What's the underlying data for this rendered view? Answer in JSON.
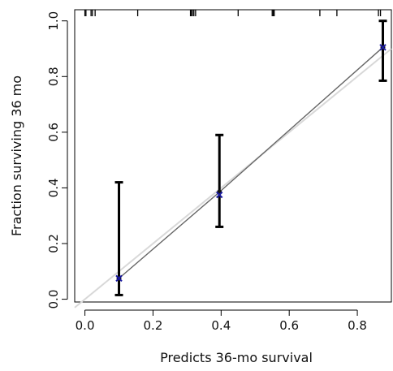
{
  "chart_data": {
    "type": "scatter",
    "xlabel": "Predicts 36-mo survival",
    "ylabel": "Fraction surviving 36 mo",
    "xlim": [
      -0.03,
      0.9
    ],
    "ylim": [
      -0.01,
      1.04
    ],
    "x_ticks": [
      0.0,
      0.2,
      0.4,
      0.6,
      0.8
    ],
    "x_tick_labels": [
      "0.0",
      "0.2",
      "0.4",
      "0.6",
      "0.8"
    ],
    "y_ticks": [
      0.0,
      0.2,
      0.4,
      0.6,
      0.8,
      1.0
    ],
    "y_tick_labels": [
      "0.0",
      "0.2",
      "0.4",
      "0.6",
      "0.8",
      "1.0"
    ],
    "grid": false,
    "points": [
      {
        "x": 0.1,
        "observed": 0.075,
        "predicted_marker": 0.075,
        "lower": 0.015,
        "upper": 0.42
      },
      {
        "x": 0.395,
        "observed": 0.385,
        "predicted_marker": 0.375,
        "lower": 0.26,
        "upper": 0.59
      },
      {
        "x": 0.875,
        "observed": 0.905,
        "predicted_marker": 0.905,
        "lower": 0.785,
        "upper": 1.0
      }
    ],
    "ideal_line": {
      "x": [
        -0.03,
        0.9
      ],
      "y": [
        -0.03,
        0.9
      ],
      "color": "#d8d8d8"
    },
    "calibration_line": {
      "x": [
        0.1,
        0.395,
        0.875
      ],
      "y": [
        0.075,
        0.385,
        0.905
      ],
      "color": "#666666"
    },
    "rug_x": [
      0.0,
      0.003,
      0.018,
      0.022,
      0.03,
      0.155,
      0.31,
      0.312,
      0.316,
      0.32,
      0.325,
      0.45,
      0.55,
      0.553,
      0.556,
      0.69,
      0.74,
      0.862,
      0.868
    ],
    "colors": {
      "error_bar": "#000000",
      "marker": "#1a1aa0",
      "axis": "#000000"
    }
  }
}
